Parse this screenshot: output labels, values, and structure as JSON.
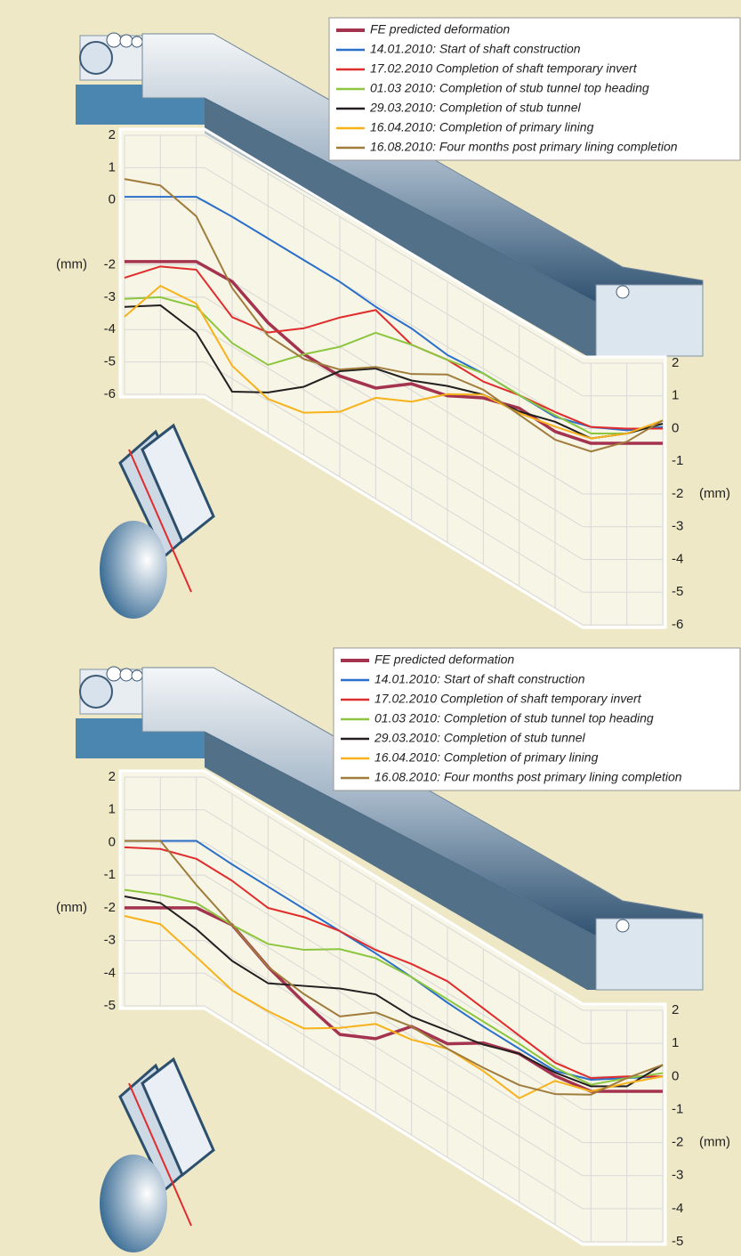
{
  "chart_data": [
    {
      "type": "line",
      "y_label": "(mm)",
      "ylim": [
        -6,
        2
      ],
      "yticks": [
        2,
        1,
        0,
        -2,
        -3,
        -4,
        -5,
        -6
      ],
      "y2lim": [
        -6,
        2
      ],
      "y2ticks": [
        2,
        1,
        0,
        -1,
        -2,
        -3,
        -4,
        -5,
        -6
      ],
      "series": [
        {
          "name": "FE predicted deformation",
          "color": "#a3334f",
          "values": [
            -1.9,
            -1.9,
            -1.9,
            -2.0,
            -2.6,
            -2.9,
            -2.9,
            -2.6,
            -1.8,
            -1.5,
            -0.9,
            -0.55,
            -0.6,
            -0.45,
            -0.45,
            -0.45
          ]
        },
        {
          "name": "14.01.2010: Start of shaft construction",
          "color": "#2a6fc9",
          "values": [
            0.1,
            0.1,
            0.1,
            0,
            0,
            0,
            0,
            -0.1,
            -0.1,
            -0.25,
            -0.15,
            -0.15,
            -0.15,
            0.05,
            -0.05,
            0.05
          ]
        },
        {
          "name": "17.02.2010 Completion of shaft temporary invert",
          "color": "#e02c2c",
          "values": [
            -2.4,
            -2.05,
            -2.15,
            -3.1,
            -2.9,
            -2.1,
            -1.1,
            -0.2,
            -0.6,
            -0.4,
            -0.4,
            -0.15,
            0,
            0.05,
            0,
            0
          ]
        },
        {
          "name": "01.03 2010: Completion of stub tunnel top heading",
          "color": "#8cc63f",
          "values": [
            -3.05,
            -3.0,
            -3.3,
            -3.9,
            -3.9,
            -2.9,
            -2.0,
            -0.9,
            -0.6,
            -0.4,
            -0.15,
            -0.15,
            -0.1,
            -0.15,
            -0.15,
            0.15
          ]
        },
        {
          "name": "29.03.2010: Completion of stub tunnel",
          "color": "#231f20",
          "values": [
            -3.3,
            -3.25,
            -4.1,
            -5.4,
            -4.75,
            -3.9,
            -2.75,
            -2.0,
            -1.7,
            -1.2,
            -0.8,
            -0.65,
            -0.3,
            -0.3,
            -0.15,
            0.15
          ]
        },
        {
          "name": "16.04.2010: Completion of primary lining",
          "color": "#f7b21b",
          "values": [
            -3.6,
            -2.65,
            -3.2,
            -4.6,
            -4.95,
            -4.7,
            -4.0,
            -2.9,
            -2.35,
            -1.45,
            -0.8,
            -0.7,
            -0.45,
            -0.3,
            -0.15,
            0.25
          ]
        },
        {
          "name": "16.08.2010: Four months post primary lining completion",
          "color": "#a07c3c",
          "values": [
            0.65,
            0.45,
            -0.5,
            -2.2,
            -3.0,
            -3.05,
            -2.7,
            -1.95,
            -1.5,
            -0.85,
            -0.65,
            -0.75,
            -0.85,
            -0.7,
            -0.4,
            0.25
          ]
        }
      ]
    },
    {
      "type": "line",
      "y_label": "(mm)",
      "ylim": [
        -5,
        2
      ],
      "yticks": [
        2,
        1,
        0,
        -1,
        -2,
        -3,
        -4,
        -5
      ],
      "y2lim": [
        -5,
        2
      ],
      "y2ticks": [
        2,
        1,
        0,
        -1,
        -2,
        -3,
        -4,
        -5
      ],
      "series": [
        {
          "name": "FE predicted deformation",
          "color": "#a3334f",
          "values": [
            -2.0,
            -2.0,
            -2.0,
            -2.0,
            -2.6,
            -3.0,
            -3.3,
            -2.75,
            -1.7,
            -1.55,
            -0.85,
            -0.5,
            -0.5,
            -0.45,
            -0.45,
            -0.45
          ]
        },
        {
          "name": "14.01.2010: Start of shaft construction",
          "color": "#2a6fc9",
          "values": [
            0.05,
            0.05,
            0.05,
            -0.15,
            -0.15,
            -0.15,
            -0.15,
            -0.15,
            -0.2,
            -0.3,
            -0.35,
            -0.35,
            -0.35,
            -0.1,
            -0.05,
            0
          ]
        },
        {
          "name": "17.02.2010 Completion of shaft temporary invert",
          "color": "#e02c2c",
          "values": [
            -0.15,
            -0.2,
            -0.5,
            -0.65,
            -0.8,
            -0.4,
            -0.15,
            -0.05,
            0.2,
            0.35,
            0.2,
            0.05,
            -0.1,
            -0.05,
            0,
            0
          ]
        },
        {
          "name": "01.03 2010: Completion of stub tunnel top heading",
          "color": "#8cc63f",
          "values": [
            -1.45,
            -1.6,
            -1.85,
            -2.0,
            -1.9,
            -1.4,
            -0.7,
            -0.3,
            -0.2,
            -0.2,
            -0.2,
            -0.2,
            -0.25,
            -0.25,
            -0.05,
            0.1
          ]
        },
        {
          "name": "29.03.2010: Completion of stub tunnel",
          "color": "#231f20",
          "values": [
            -1.65,
            -1.85,
            -2.65,
            -3.1,
            -3.1,
            -2.5,
            -1.9,
            -1.4,
            -1.4,
            -1.15,
            -0.9,
            -0.5,
            -0.4,
            -0.3,
            -0.3,
            0.35
          ]
        },
        {
          "name": "16.04.2010: Completion of primary lining",
          "color": "#f7b21b",
          "values": [
            -2.25,
            -2.5,
            -3.5,
            -4.0,
            -3.95,
            -3.8,
            -3.1,
            -2.3,
            -2.1,
            -1.7,
            -1.7,
            -1.85,
            -0.65,
            -0.45,
            -0.2,
            0
          ]
        },
        {
          "name": "16.08.2010: Four months post primary lining completion",
          "color": "#a07c3c",
          "values": [
            0.05,
            0.05,
            -1.3,
            -2.0,
            -2.6,
            -2.75,
            -2.75,
            -1.95,
            -1.7,
            -1.7,
            -1.6,
            -1.45,
            -1.05,
            -0.55,
            -0.05,
            0.35
          ]
        }
      ]
    }
  ]
}
